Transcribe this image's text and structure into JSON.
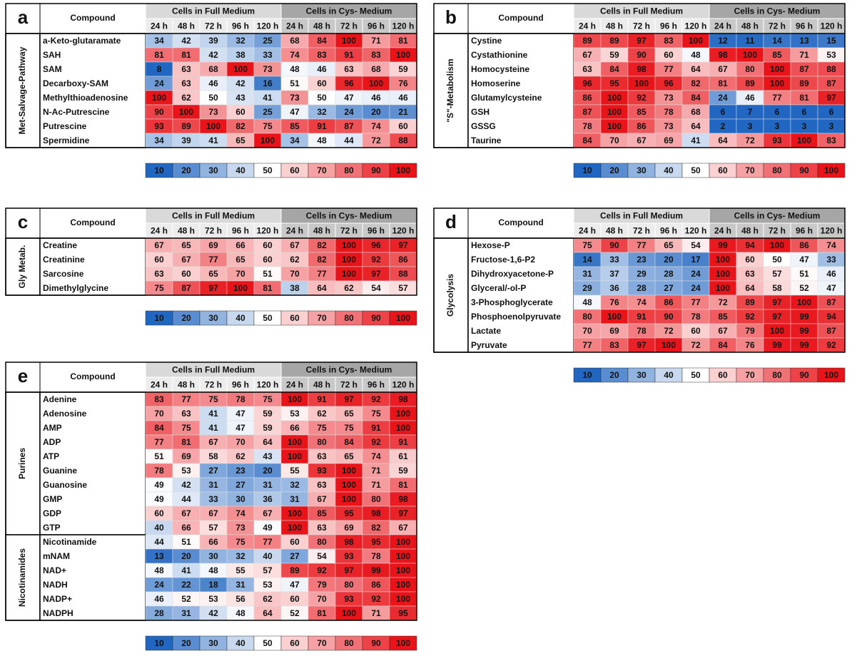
{
  "color_scale": {
    "low": "#2166c0",
    "mid": "#ffffff",
    "high": "#e8141a",
    "min": 10,
    "center": 50,
    "max": 100
  },
  "panels": [
    {
      "label": "a",
      "headers": {
        "compound": "Compound",
        "full": "Cells in Full Medium",
        "cys": "Cells in Cys- Medium"
      },
      "times": [
        "24 h",
        "48 h",
        "72 h",
        "96 h",
        "120 h",
        "24 h",
        "48 h",
        "72 h",
        "96 h",
        "120 h"
      ],
      "groups": [
        {
          "name": "Met-Salvage-Pathway",
          "rows": [
            {
              "name": "a-Keto-glutaramate",
              "values": [
                34,
                42,
                39,
                32,
                25,
                68,
                84,
                100,
                71,
                81
              ]
            },
            {
              "name": "SAH",
              "values": [
                81,
                81,
                42,
                38,
                33,
                74,
                83,
                91,
                83,
                100
              ]
            },
            {
              "name": "SAM",
              "values": [
                8,
                63,
                68,
                100,
                73,
                48,
                46,
                63,
                68,
                59
              ]
            },
            {
              "name": "Decarboxy-SAM",
              "values": [
                24,
                63,
                46,
                42,
                16,
                51,
                60,
                96,
                100,
                76
              ]
            },
            {
              "name": "Methylthioadenosine",
              "values": [
                100,
                62,
                50,
                43,
                41,
                73,
                50,
                47,
                46,
                46
              ]
            },
            {
              "name": "N-Ac-Putrescine",
              "values": [
                90,
                100,
                73,
                60,
                25,
                47,
                32,
                24,
                20,
                21
              ]
            },
            {
              "name": "Putrescine",
              "values": [
                93,
                89,
                100,
                82,
                75,
                85,
                91,
                87,
                74,
                60
              ]
            },
            {
              "name": "Spermidine",
              "values": [
                34,
                39,
                41,
                65,
                100,
                34,
                48,
                44,
                72,
                88
              ]
            }
          ]
        }
      ],
      "legend": [
        10,
        20,
        30,
        40,
        50,
        60,
        70,
        80,
        90,
        100
      ]
    },
    {
      "label": "b",
      "headers": {
        "compound": "Compound",
        "full": "Cells in Full Medium",
        "cys": "Cells in Cys- Medium"
      },
      "times": [
        "24 h",
        "48 h",
        "72 h",
        "96 h",
        "120 h",
        "24 h",
        "48 h",
        "72 h",
        "96 h",
        "120 h"
      ],
      "groups": [
        {
          "name": "\"S\"-Metabolism",
          "rows": [
            {
              "name": "Cystine",
              "values": [
                89,
                89,
                97,
                83,
                100,
                12,
                11,
                14,
                13,
                15
              ]
            },
            {
              "name": "Cystathionine",
              "values": [
                67,
                59,
                90,
                60,
                48,
                98,
                100,
                85,
                71,
                53
              ]
            },
            {
              "name": "Homocysteine",
              "values": [
                63,
                84,
                98,
                77,
                64,
                67,
                80,
                100,
                87,
                88
              ]
            },
            {
              "name": "Homoserine",
              "values": [
                96,
                95,
                100,
                96,
                82,
                81,
                89,
                100,
                89,
                87
              ]
            },
            {
              "name": "Glutamylcysteine",
              "values": [
                86,
                100,
                92,
                73,
                84,
                24,
                46,
                77,
                81,
                97
              ]
            },
            {
              "name": "GSH",
              "values": [
                87,
                100,
                85,
                78,
                68,
                6,
                7,
                6,
                6,
                6
              ]
            },
            {
              "name": "GSSG",
              "values": [
                78,
                100,
                86,
                73,
                64,
                2,
                3,
                3,
                3,
                3
              ]
            },
            {
              "name": "Taurine",
              "values": [
                84,
                70,
                67,
                69,
                41,
                64,
                72,
                93,
                100,
                83
              ]
            }
          ]
        }
      ],
      "legend": [
        10,
        20,
        30,
        40,
        50,
        60,
        70,
        80,
        90,
        100
      ]
    },
    {
      "label": "c",
      "headers": {
        "compound": "Compound",
        "full": "Cells in Full Medium",
        "cys": "Cells in Cys- Medium"
      },
      "times": [
        "24 h",
        "48 h",
        "72 h",
        "96 h",
        "120 h",
        "24 h",
        "48 h",
        "72 h",
        "96 h",
        "120 h"
      ],
      "groups": [
        {
          "name": "Gly Metab.",
          "rows": [
            {
              "name": "Creatine",
              "values": [
                67,
                65,
                69,
                66,
                60,
                67,
                82,
                100,
                96,
                97
              ]
            },
            {
              "name": "Creatinine",
              "values": [
                60,
                67,
                77,
                65,
                60,
                62,
                82,
                100,
                92,
                86
              ]
            },
            {
              "name": "Sarcosine",
              "values": [
                63,
                60,
                65,
                70,
                51,
                70,
                77,
                100,
                97,
                88
              ]
            },
            {
              "name": "Dimethylglycine",
              "values": [
                75,
                87,
                97,
                100,
                81,
                38,
                64,
                62,
                54,
                57
              ]
            }
          ]
        }
      ],
      "legend": [
        10,
        20,
        30,
        40,
        50,
        60,
        70,
        80,
        90,
        100
      ]
    },
    {
      "label": "d",
      "headers": {
        "compound": "Compound",
        "full": "Cells in Full Medium",
        "cys": "Cells in Cys- Medium"
      },
      "times": [
        "24 h",
        "48 h",
        "72 h",
        "96 h",
        "120 h",
        "24 h",
        "48 h",
        "72 h",
        "96 h",
        "120 h"
      ],
      "groups": [
        {
          "name": "Glycolysis",
          "rows": [
            {
              "name": "Hexose-P",
              "values": [
                75,
                90,
                77,
                65,
                54,
                99,
                94,
                100,
                86,
                74
              ]
            },
            {
              "name": "Fructose-1,6-P2",
              "values": [
                14,
                33,
                23,
                20,
                17,
                100,
                60,
                50,
                47,
                33
              ]
            },
            {
              "name": "Dihydroxyacetone-P",
              "values": [
                31,
                37,
                29,
                28,
                24,
                100,
                63,
                57,
                51,
                46
              ]
            },
            {
              "name": "Glyceral/-ol-P",
              "values": [
                29,
                36,
                28,
                27,
                24,
                100,
                64,
                58,
                52,
                47
              ]
            },
            {
              "name": "3-Phosphoglycerate",
              "values": [
                48,
                76,
                74,
                86,
                77,
                72,
                89,
                97,
                100,
                87
              ]
            },
            {
              "name": "Phosphoenolpyruvate",
              "values": [
                80,
                100,
                91,
                90,
                78,
                85,
                92,
                97,
                99,
                94
              ]
            },
            {
              "name": "Lactate",
              "values": [
                70,
                69,
                78,
                72,
                60,
                67,
                79,
                100,
                99,
                87
              ]
            },
            {
              "name": "Pyruvate",
              "values": [
                77,
                83,
                97,
                100,
                72,
                84,
                76,
                99,
                99,
                92
              ]
            }
          ]
        }
      ],
      "legend": [
        10,
        20,
        30,
        40,
        50,
        60,
        70,
        80,
        90,
        100
      ]
    },
    {
      "label": "e",
      "headers": {
        "compound": "Compound",
        "full": "Cells in Full Medium",
        "cys": "Cells in Cys- Medium"
      },
      "times": [
        "24 h",
        "48 h",
        "72 h",
        "96 h",
        "120 h",
        "24 h",
        "48 h",
        "72 h",
        "96 h",
        "120 h"
      ],
      "groups": [
        {
          "name": "Purines",
          "rows": [
            {
              "name": "Adenine",
              "values": [
                83,
                77,
                75,
                78,
                75,
                100,
                91,
                97,
                92,
                98
              ]
            },
            {
              "name": "Adenosine",
              "values": [
                70,
                63,
                41,
                47,
                59,
                53,
                62,
                65,
                75,
                100
              ]
            },
            {
              "name": "AMP",
              "values": [
                84,
                75,
                41,
                47,
                59,
                66,
                75,
                75,
                91,
                100
              ]
            },
            {
              "name": "ADP",
              "values": [
                77,
                81,
                67,
                70,
                64,
                100,
                80,
                84,
                92,
                91
              ]
            },
            {
              "name": "ATP",
              "values": [
                51,
                69,
                58,
                62,
                43,
                100,
                63,
                65,
                74,
                61
              ]
            },
            {
              "name": "Guanine",
              "values": [
                78,
                53,
                27,
                23,
                20,
                55,
                93,
                100,
                71,
                59
              ]
            },
            {
              "name": "Guanosine",
              "values": [
                49,
                42,
                31,
                27,
                31,
                32,
                63,
                100,
                71,
                81
              ]
            },
            {
              "name": "GMP",
              "values": [
                49,
                44,
                33,
                30,
                36,
                31,
                67,
                100,
                80,
                98
              ]
            },
            {
              "name": "GDP",
              "values": [
                60,
                67,
                67,
                74,
                67,
                100,
                85,
                95,
                98,
                97
              ]
            },
            {
              "name": "GTP",
              "values": [
                40,
                66,
                57,
                73,
                49,
                100,
                63,
                69,
                82,
                67
              ]
            }
          ]
        },
        {
          "name": "Nicotinamides",
          "rows": [
            {
              "name": "Nicotinamide",
              "values": [
                44,
                51,
                66,
                75,
                77,
                60,
                80,
                98,
                95,
                100
              ]
            },
            {
              "name": "mNAM",
              "values": [
                13,
                20,
                30,
                32,
                40,
                27,
                54,
                93,
                78,
                100
              ]
            },
            {
              "name": "NAD+",
              "values": [
                48,
                41,
                48,
                55,
                57,
                89,
                92,
                97,
                99,
                100
              ]
            },
            {
              "name": "NADH",
              "values": [
                24,
                22,
                18,
                31,
                53,
                47,
                79,
                80,
                86,
                100
              ]
            },
            {
              "name": "NADP+",
              "values": [
                46,
                52,
                53,
                56,
                62,
                60,
                70,
                93,
                92,
                100
              ]
            },
            {
              "name": "NADPH",
              "values": [
                28,
                31,
                42,
                48,
                64,
                52,
                81,
                100,
                71,
                95
              ]
            }
          ]
        }
      ],
      "legend": [
        10,
        20,
        30,
        40,
        50,
        60,
        70,
        80,
        90,
        100
      ]
    }
  ]
}
